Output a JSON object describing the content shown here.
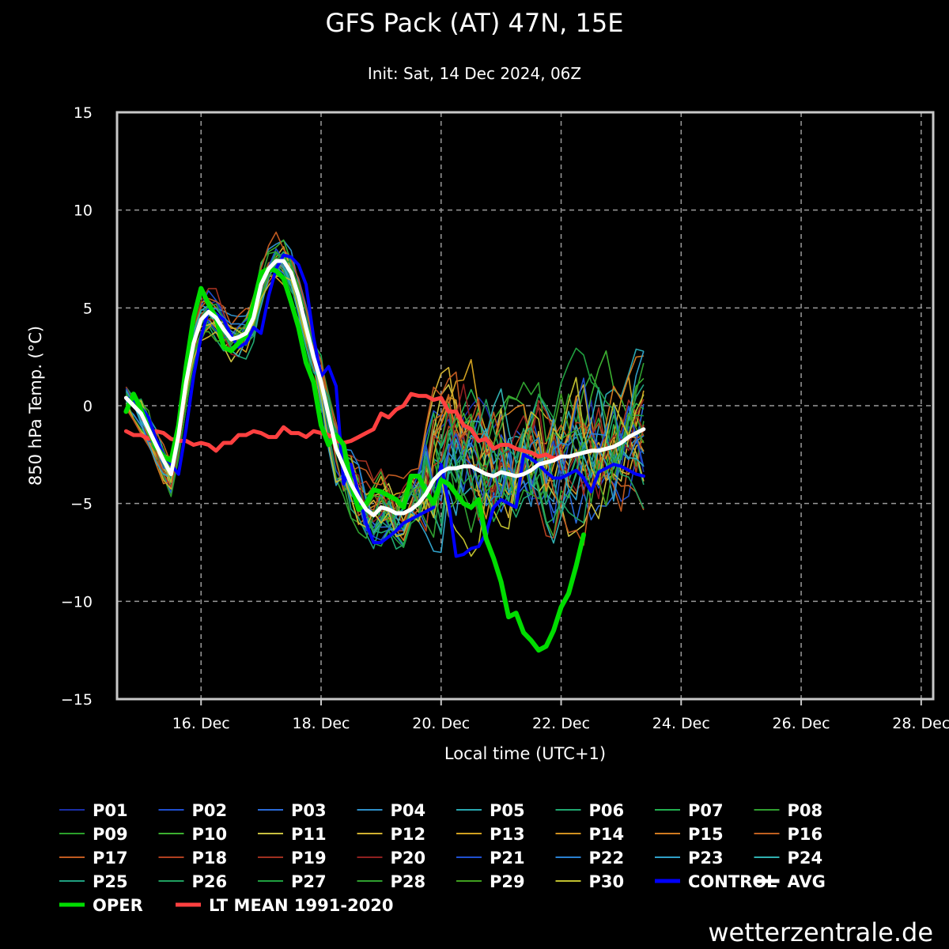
{
  "chart_data": {
    "type": "line",
    "title": "GFS Pack (AT) 47N, 15E",
    "subtitle": "Init: Sat, 14 Dec 2024, 06Z",
    "xlabel": "Local time (UTC+1)",
    "ylabel": "850 hPa Temp. (°C)",
    "ylim": [
      -15,
      15
    ],
    "xlim": [
      14.6,
      28.2
    ],
    "yticks": [
      15,
      10,
      5,
      0,
      -5,
      -10,
      -15
    ],
    "xticks": [
      {
        "pos": 16,
        "label": "16. Dec"
      },
      {
        "pos": 18,
        "label": "18. Dec"
      },
      {
        "pos": 20,
        "label": "20. Dec"
      },
      {
        "pos": 22,
        "label": "22. Dec"
      },
      {
        "pos": 24,
        "label": "24. Dec"
      },
      {
        "pos": 26,
        "label": "26. Dec"
      },
      {
        "pos": 28,
        "label": "28. Dec"
      }
    ],
    "grid": true,
    "legend_position": "bottom",
    "x_step_days": 0.125,
    "x_start": 14.75,
    "series": [
      {
        "name": "CONTROL",
        "color": "#0000ff",
        "width": 4,
        "values": [
          0.4,
          0.3,
          -0.1,
          -0.6,
          -1.7,
          -2.5,
          -3.0,
          -3.5,
          -1.2,
          1.5,
          3.5,
          4.9,
          4.7,
          4.4,
          3.6,
          3.0,
          3.2,
          4.0,
          3.7,
          5.6,
          7.0,
          7.7,
          7.6,
          7.2,
          6.2,
          3.5,
          1.5,
          2.0,
          1.0,
          -4.0,
          -3.0,
          -4.5,
          -6.0,
          -7.0,
          -7.0,
          -6.7,
          -6.4,
          -6.0,
          -5.8,
          -5.6,
          -5.4,
          -5.2,
          -3.0,
          -5.0,
          -7.7,
          -7.6,
          -7.3,
          -7.2,
          -6.5,
          -5.2,
          -4.8,
          -5.0,
          -5.2,
          -2.5,
          -2.7,
          -3.0,
          -3.4,
          -3.7,
          -3.7,
          -3.5,
          -3.3,
          -3.7,
          -4.4,
          -3.4,
          -3.2,
          -3.0,
          -3.1,
          -3.3,
          -3.5,
          -3.6
        ]
      },
      {
        "name": "AVG",
        "color": "#ffffff",
        "width": 5,
        "values": [
          0.4,
          0.0,
          -0.4,
          -1.2,
          -2.0,
          -2.8,
          -3.5,
          -1.5,
          1.2,
          3.2,
          4.4,
          4.8,
          4.5,
          3.9,
          3.4,
          3.5,
          3.7,
          4.5,
          6.2,
          7.0,
          7.4,
          7.4,
          6.8,
          5.6,
          4.0,
          2.5,
          1.2,
          -0.5,
          -2.2,
          -3.1,
          -4.0,
          -4.7,
          -5.3,
          -5.6,
          -5.2,
          -5.3,
          -5.5,
          -5.5,
          -5.3,
          -5.0,
          -4.5,
          -3.8,
          -3.4,
          -3.2,
          -3.2,
          -3.1,
          -3.1,
          -3.3,
          -3.5,
          -3.6,
          -3.4,
          -3.5,
          -3.6,
          -3.5,
          -3.3,
          -3.0,
          -2.9,
          -2.8,
          -2.6,
          -2.6,
          -2.5,
          -2.4,
          -2.3,
          -2.3,
          -2.2,
          -2.1,
          -1.9,
          -1.6,
          -1.4,
          -1.2
        ]
      },
      {
        "name": "OPER",
        "color": "#00dd00",
        "width": 6,
        "values": [
          -0.3,
          0.6,
          -0.2,
          -1.2,
          -2.1,
          -2.6,
          -2.8,
          -1.0,
          2.0,
          4.5,
          6.0,
          5.2,
          4.5,
          3.0,
          2.8,
          3.2,
          3.6,
          5.2,
          6.8,
          7.0,
          6.9,
          6.5,
          5.3,
          4.0,
          2.2,
          1.2,
          -1.0,
          -2.0,
          -1.5,
          -2.0,
          -4.0,
          -5.3,
          -5.0,
          -4.3,
          -4.4,
          -4.6,
          -4.8,
          -5.2,
          -3.6,
          -3.6,
          -4.4,
          -5.0,
          -3.8,
          -4.0,
          -4.5,
          -5.0,
          -5.2,
          -4.8,
          -6.8,
          -7.8,
          -9.0,
          -10.8,
          -10.6,
          -11.6,
          -12.0,
          -12.5,
          -12.3,
          -11.5,
          -10.3,
          -9.6,
          -8.2,
          -6.6
        ]
      },
      {
        "name": "LT MEAN 1991-2020",
        "color": "#ff4040",
        "width": 5,
        "values": [
          -1.3,
          -1.5,
          -1.5,
          -1.7,
          -1.3,
          -1.4,
          -1.7,
          -1.8,
          -1.8,
          -2.0,
          -1.9,
          -2.0,
          -2.3,
          -1.9,
          -1.9,
          -1.5,
          -1.5,
          -1.3,
          -1.4,
          -1.6,
          -1.6,
          -1.1,
          -1.4,
          -1.4,
          -1.6,
          -1.3,
          -1.4,
          -1.5,
          -1.8,
          -1.9,
          -1.8,
          -1.6,
          -1.4,
          -1.2,
          -0.4,
          -0.6,
          -0.2,
          0.0,
          0.6,
          0.5,
          0.5,
          0.3,
          0.4,
          -0.3,
          -0.3,
          -1.0,
          -1.2,
          -1.8,
          -1.7,
          -2.2,
          -2.0,
          -2.0,
          -2.2,
          -2.3,
          -2.4,
          -2.6,
          -2.5,
          -2.7,
          -2.6
        ]
      }
    ],
    "legend": [
      {
        "label": "P01",
        "color": "#1a2ea8"
      },
      {
        "label": "P02",
        "color": "#1f4fd0"
      },
      {
        "label": "P03",
        "color": "#2a6ad8"
      },
      {
        "label": "P04",
        "color": "#2f8fc8"
      },
      {
        "label": "P05",
        "color": "#29a7b0"
      },
      {
        "label": "P06",
        "color": "#20a870"
      },
      {
        "label": "P07",
        "color": "#22b050"
      },
      {
        "label": "P08",
        "color": "#30a030"
      },
      {
        "label": "P09",
        "color": "#2ba02b"
      },
      {
        "label": "P10",
        "color": "#3cb030"
      },
      {
        "label": "P11",
        "color": "#c8c040"
      },
      {
        "label": "P12",
        "color": "#d0b030"
      },
      {
        "label": "P13",
        "color": "#d0a020"
      },
      {
        "label": "P14",
        "color": "#d09020"
      },
      {
        "label": "P15",
        "color": "#d07a20"
      },
      {
        "label": "P16",
        "color": "#c06020"
      },
      {
        "label": "P17",
        "color": "#c05a20"
      },
      {
        "label": "P18",
        "color": "#b04020"
      },
      {
        "label": "P19",
        "color": "#a03020"
      },
      {
        "label": "P20",
        "color": "#902020"
      },
      {
        "label": "P21",
        "color": "#2050d0"
      },
      {
        "label": "P22",
        "color": "#2a80d0"
      },
      {
        "label": "P23",
        "color": "#30a0c8"
      },
      {
        "label": "P24",
        "color": "#30b0b0"
      },
      {
        "label": "P25",
        "color": "#20a080"
      },
      {
        "label": "P26",
        "color": "#20a060"
      },
      {
        "label": "P27",
        "color": "#20a040"
      },
      {
        "label": "P28",
        "color": "#30a030"
      },
      {
        "label": "P29",
        "color": "#40a020"
      },
      {
        "label": "P30",
        "color": "#c0c030"
      },
      {
        "label": "CONTROL",
        "color": "#0000ff",
        "bold": true
      },
      {
        "label": "AVG",
        "color": "#ffffff",
        "bold": true
      },
      {
        "label": "OPER",
        "color": "#00dd00",
        "bold": true
      },
      {
        "label": "LT MEAN 1991-2020",
        "color": "#ff4040",
        "bold": true
      }
    ]
  },
  "branding": "wetterzentrale.de"
}
